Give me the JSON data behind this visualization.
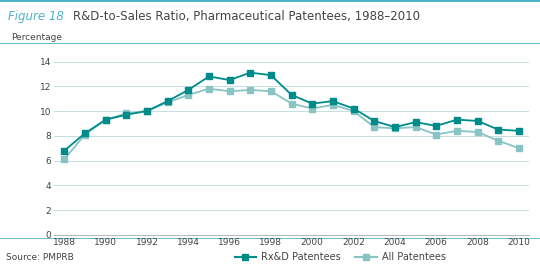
{
  "title_figure": "Figure 18",
  "title_main": "R&D-to-Sales Ratio, Pharmaceutical Patentees, 1988–2010",
  "ylabel": "Percentage",
  "source": "Source: PMPRB",
  "years": [
    1988,
    1989,
    1990,
    1991,
    1992,
    1993,
    1994,
    1995,
    1996,
    1997,
    1998,
    1999,
    2000,
    2001,
    2002,
    2003,
    2004,
    2005,
    2006,
    2007,
    2008,
    2009,
    2010
  ],
  "rxd_patentees": [
    6.8,
    8.2,
    9.3,
    9.7,
    10.0,
    10.8,
    11.7,
    12.8,
    12.5,
    13.1,
    12.9,
    11.3,
    10.6,
    10.8,
    10.2,
    9.2,
    8.7,
    9.1,
    8.8,
    9.3,
    9.2,
    8.5,
    8.4
  ],
  "all_patentees": [
    6.1,
    8.1,
    9.3,
    9.8,
    10.0,
    10.7,
    11.3,
    11.8,
    11.6,
    11.7,
    11.6,
    10.6,
    10.2,
    10.5,
    10.0,
    8.7,
    8.6,
    8.7,
    8.1,
    8.4,
    8.3,
    7.6,
    7.0
  ],
  "rxd_color": "#008b8b",
  "all_color": "#88c4c4",
  "ylim": [
    0,
    15
  ],
  "yticks": [
    0,
    2,
    4,
    6,
    8,
    10,
    12,
    14
  ],
  "xticks": [
    1988,
    1990,
    1992,
    1994,
    1996,
    1998,
    2000,
    2002,
    2004,
    2006,
    2008,
    2010
  ],
  "bg_color": "#ffffff",
  "plot_bg_color": "#ffffff",
  "grid_color": "#c5dde0",
  "title_color": "#4db3c8",
  "header_line_color": "#4db3c8",
  "text_color": "#444444"
}
